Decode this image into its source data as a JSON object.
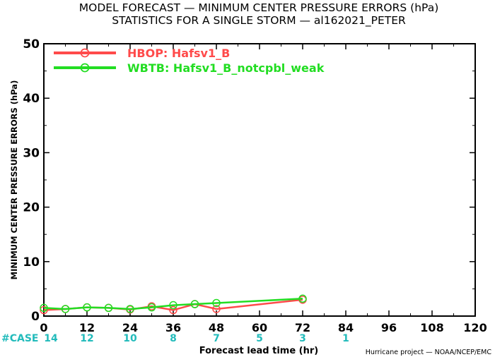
{
  "chart_data": {
    "type": "line",
    "title": "MODEL FORECAST — MINIMUM CENTER PRESSURE ERRORS (hPa)",
    "subtitle": "STATISTICS FOR A SINGLE STORM — al162021_PETER",
    "xlabel": "Forecast lead time (hr)",
    "ylabel": "MINIMUM CENTER PRESSURE ERRORS (hPa)",
    "xlim": [
      0,
      120
    ],
    "ylim": [
      0,
      50
    ],
    "x_ticks": [
      "0",
      "12",
      "24",
      "36",
      "48",
      "60",
      "72",
      "84",
      "96",
      "108",
      "120"
    ],
    "y_ticks": [
      "0",
      "10",
      "20",
      "30",
      "40",
      "50"
    ],
    "grid": false,
    "legend_position": "top-left",
    "series": [
      {
        "name": "HBOP: Hafsv1_B",
        "color": "#ff4a4a",
        "x": [
          0,
          6,
          12,
          18,
          24,
          30,
          36,
          42,
          48,
          72
        ],
        "y": [
          1.1,
          1.3,
          1.6,
          1.5,
          1.2,
          1.8,
          1.1,
          2.2,
          1.3,
          3.0
        ]
      },
      {
        "name": "WBTB: Hafsv1_B_notcpbl_weak",
        "color": "#22dd22",
        "x": [
          0,
          6,
          12,
          18,
          24,
          30,
          36,
          42,
          48,
          72
        ],
        "y": [
          1.5,
          1.3,
          1.6,
          1.5,
          1.3,
          1.6,
          2.0,
          2.2,
          2.4,
          3.2
        ]
      }
    ],
    "cases": {
      "label": "#CASE",
      "x": [
        0,
        12,
        24,
        36,
        48,
        60,
        72,
        84
      ],
      "counts": [
        "14",
        "12",
        "10",
        "8",
        "7",
        "5",
        "3",
        "1"
      ],
      "color": "#22bbbb"
    },
    "credit": "Hurricane project — NOAA/NCEP/EMC"
  }
}
